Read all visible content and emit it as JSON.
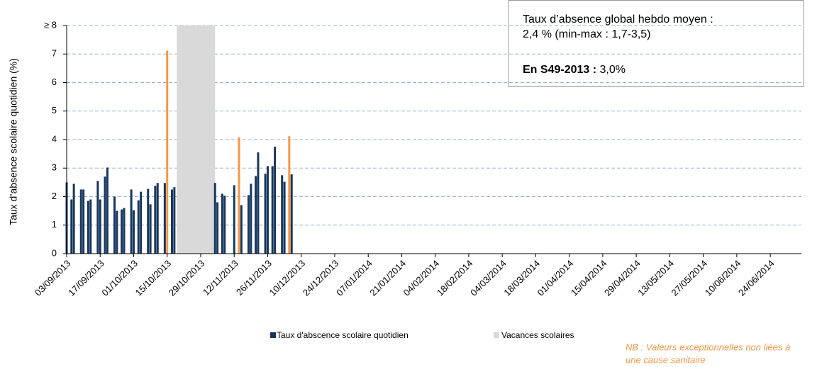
{
  "chart_data": {
    "type": "bar",
    "ylabel": "Taux d’absence scolaire quotidien (%)",
    "ylim": [
      0,
      8
    ],
    "yticks": [
      0,
      1,
      2,
      3,
      4,
      5,
      6,
      7,
      {
        "value": 8,
        "label": "≥ 8"
      }
    ],
    "xlim": [
      "03/09/2013",
      "07/07/2014"
    ],
    "xticks": [
      "03/09/2013",
      "17/09/2013",
      "01/10/2013",
      "15/10/2013",
      "29/10/2013",
      "12/11/2013",
      "26/11/2013",
      "10/12/2013",
      "24/12/2013",
      "07/01/2014",
      "21/01/2014",
      "04/02/2014",
      "18/02/2014",
      "04/03/2014",
      "18/03/2014",
      "01/04/2014",
      "15/04/2014",
      "29/04/2014",
      "13/05/2014",
      "27/05/2014",
      "10/06/2014",
      "24/06/2014"
    ],
    "grid": true,
    "x": [
      "03/09/2013",
      "05/09/2013",
      "06/09/2013",
      "09/09/2013",
      "10/09/2013",
      "12/09/2013",
      "13/09/2013",
      "16/09/2013",
      "17/09/2013",
      "19/09/2013",
      "20/09/2013",
      "23/09/2013",
      "24/09/2013",
      "26/09/2013",
      "27/09/2013",
      "30/09/2013",
      "01/10/2013",
      "03/10/2013",
      "04/10/2013",
      "07/10/2013",
      "08/10/2013",
      "10/10/2013",
      "11/10/2013",
      "14/10/2013",
      "15/10/2013",
      "17/10/2013",
      "18/10/2013",
      "04/11/2013",
      "05/11/2013",
      "07/11/2013",
      "08/11/2013",
      "12/11/2013",
      "14/11/2013",
      "15/11/2013",
      "18/11/2013",
      "19/11/2013",
      "21/11/2013",
      "22/11/2013",
      "25/11/2013",
      "26/11/2013",
      "28/11/2013",
      "29/11/2013",
      "02/12/2013",
      "03/12/2013",
      "05/12/2013",
      "06/12/2013"
    ],
    "series": [
      {
        "name": "Taux d'abscence scolaire quotidien",
        "color": "#17375e",
        "values": [
          2.5,
          1.9,
          2.45,
          2.25,
          2.25,
          1.85,
          1.9,
          2.55,
          1.9,
          2.7,
          3.02,
          2.0,
          1.5,
          1.55,
          1.6,
          2.25,
          1.52,
          1.87,
          2.17,
          2.27,
          1.73,
          2.38,
          2.48,
          2.48,
          7.12,
          2.25,
          2.33,
          2.48,
          1.8,
          2.1,
          2.03,
          2.4,
          4.08,
          1.7,
          2.05,
          2.45,
          2.72,
          3.55,
          2.8,
          3.07,
          3.07,
          3.75,
          2.75,
          2.52,
          4.12,
          2.78
        ],
        "exceptional_color": "#f79646",
        "exceptional": [
          false,
          false,
          false,
          false,
          false,
          false,
          false,
          false,
          false,
          false,
          false,
          false,
          false,
          false,
          false,
          false,
          false,
          false,
          false,
          false,
          false,
          false,
          false,
          false,
          true,
          false,
          false,
          false,
          false,
          false,
          false,
          false,
          true,
          false,
          false,
          false,
          false,
          false,
          false,
          false,
          false,
          false,
          false,
          false,
          true,
          false
        ]
      }
    ],
    "shaded_periods": [
      {
        "name": "Vacances scolaires",
        "color": "#d9d9d9",
        "start": "19/10/2013",
        "end": "04/11/2013"
      }
    ],
    "annotation": {
      "line1": "Taux d’absence global hebdo moyen :",
      "line2": "2,4 % (min-max : 1,7-3,5)",
      "bold": "En S49-2013 :",
      "value": " 3,0%"
    },
    "note": [
      "NB : Valeurs exceptionnelles non liées à",
      "une cause sanitaire"
    ]
  }
}
